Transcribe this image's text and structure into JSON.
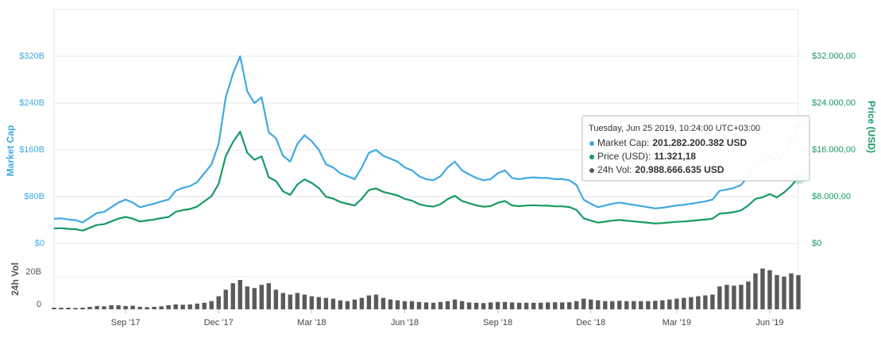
{
  "chart_data": [
    {
      "type": "line",
      "y_label": "Market Cap",
      "y2_label": "Price (USD)",
      "grid": true,
      "ylim": [
        0,
        400000000000
      ],
      "yticks": [
        {
          "value": 0,
          "label": "$0"
        },
        {
          "value": 80000000000,
          "label": "$80B"
        },
        {
          "value": 160000000000,
          "label": "$160B"
        },
        {
          "value": 240000000000,
          "label": "$240B"
        },
        {
          "value": 320000000000,
          "label": "$320B"
        }
      ],
      "y2lim": [
        0,
        40000
      ],
      "y2ticks": [
        {
          "value": 0,
          "label": "$0"
        },
        {
          "value": 8000,
          "label": "$8.000,00"
        },
        {
          "value": 16000,
          "label": "$16.000,00"
        },
        {
          "value": 24000,
          "label": "$24.000,00"
        },
        {
          "value": 32000,
          "label": "$32.000,00"
        }
      ],
      "series": [
        {
          "color": "#3fa9e2",
          "values": [
            42000000000.0,
            43000000000.0,
            41000000000.0,
            40000000000.0,
            36000000000.0,
            44000000000.0,
            52000000000.0,
            54000000000.0,
            62000000000.0,
            70000000000.0,
            75000000000.0,
            70000000000.0,
            62000000000.0,
            65000000000.0,
            68000000000.0,
            72000000000.0,
            75000000000.0,
            90000000000.0,
            95000000000.0,
            98000000000.0,
            105000000000.0,
            120000000000.0,
            135000000000.0,
            170000000000.0,
            250000000000.0,
            290000000000.0,
            320000000000.0,
            260000000000.0,
            240000000000.0,
            250000000000.0,
            190000000000.0,
            180000000000.0,
            150000000000.0,
            140000000000.0,
            170000000000.0,
            185000000000.0,
            175000000000.0,
            160000000000.0,
            135000000000.0,
            130000000000.0,
            120000000000.0,
            115000000000.0,
            110000000000.0,
            130000000000.0,
            155000000000.0,
            160000000000.0,
            150000000000.0,
            145000000000.0,
            140000000000.0,
            130000000000.0,
            125000000000.0,
            115000000000.0,
            110000000000.0,
            108000000000.0,
            115000000000.0,
            130000000000.0,
            140000000000.0,
            125000000000.0,
            118000000000.0,
            112000000000.0,
            108000000000.0,
            110000000000.0,
            120000000000.0,
            125000000000.0,
            112000000000.0,
            110000000000.0,
            112000000000.0,
            113000000000.0,
            112000000000.0,
            112000000000.0,
            110000000000.0,
            110000000000.0,
            108000000000.0,
            100000000000.0,
            75000000000.0,
            68000000000.0,
            62000000000.0,
            65000000000.0,
            68000000000.0,
            70000000000.0,
            68000000000.0,
            66000000000.0,
            64000000000.0,
            62000000000.0,
            60000000000.0,
            61000000000.0,
            63000000000.0,
            65000000000.0,
            66000000000.0,
            68000000000.0,
            70000000000.0,
            72000000000.0,
            75000000000.0,
            90000000000.0,
            92000000000.0,
            95000000000.0,
            100000000000.0,
            115000000000.0,
            135000000000.0,
            140000000000.0,
            150000000000.0,
            140000000000.0,
            155000000000.0,
            175000000000.0,
            201282200382
          ]
        },
        {
          "color": "#169b62",
          "axis": "y2",
          "values": [
            2560,
            2620,
            2500,
            2440,
            2190,
            2680,
            3160,
            3290,
            3770,
            4240,
            4540,
            4230,
            3750,
            3930,
            4100,
            4340,
            4520,
            5410,
            5710,
            5890,
            6300,
            7200,
            8080,
            10170,
            14950,
            17320,
            19100,
            15510,
            14300,
            14890,
            11310,
            10700,
            8910,
            8310,
            10080,
            10970,
            10360,
            9470,
            7980,
            7680,
            7080,
            6780,
            6480,
            7660,
            9120,
            9410,
            8810,
            8510,
            8210,
            7620,
            7320,
            6730,
            6430,
            6310,
            6710,
            7580,
            8160,
            7280,
            6870,
            6510,
            6280,
            6390,
            6960,
            7250,
            6490,
            6370,
            6480,
            6530,
            6470,
            6460,
            6340,
            6340,
            6220,
            5750,
            4310,
            3910,
            3560,
            3730,
            3900,
            4010,
            3890,
            3770,
            3660,
            3540,
            3420,
            3480,
            3590,
            3700,
            3750,
            3860,
            3980,
            4080,
            4250,
            5100,
            5210,
            5370,
            5650,
            6490,
            7620,
            7890,
            8450,
            7880,
            8720,
            9840,
            11321.18
          ]
        }
      ],
      "tooltip": {
        "title": "Tuesday, Jun 25 2019, 10:24:00 UTC+03:00",
        "rows": [
          {
            "label": "Market Cap:",
            "value": "201.282.200.382 USD"
          },
          {
            "label": "Price (USD):",
            "value": "11.321,18"
          },
          {
            "label": "24h Vol:",
            "value": "20.988.666.635 USD"
          }
        ]
      }
    },
    {
      "type": "bar",
      "y_label": "24h Vol",
      "categories": [
        null,
        null,
        null,
        null,
        null,
        null,
        null,
        null,
        null,
        null,
        "Sep '17",
        null,
        null,
        null,
        null,
        null,
        null,
        null,
        null,
        null,
        null,
        null,
        null,
        "Dec '17",
        null,
        null,
        null,
        null,
        null,
        null,
        null,
        null,
        null,
        null,
        null,
        null,
        "Mar '18",
        null,
        null,
        null,
        null,
        null,
        null,
        null,
        null,
        null,
        null,
        null,
        null,
        "Jun '18",
        null,
        null,
        null,
        null,
        null,
        null,
        null,
        null,
        null,
        null,
        null,
        null,
        "Sep '18",
        null,
        null,
        null,
        null,
        null,
        null,
        null,
        null,
        null,
        null,
        null,
        null,
        "Dec '18",
        null,
        null,
        null,
        null,
        null,
        null,
        null,
        null,
        null,
        null,
        null,
        "Mar '19",
        null,
        null,
        null,
        null,
        null,
        null,
        null,
        null,
        null,
        null,
        null,
        null,
        "Jun '19",
        null,
        null,
        null,
        null
      ],
      "ylim": [
        0,
        36000000000
      ],
      "yticks": [
        0,
        {
          "value": 20000000000,
          "label": "20B"
        }
      ],
      "series": [
        {
          "color": "#5a5a5a",
          "values": [
            1000000000.0,
            1000000000.0,
            1000000000.0,
            800000000.0,
            1000000000.0,
            1500000000.0,
            2000000000.0,
            1800000000.0,
            2500000000.0,
            2500000000.0,
            2000000000.0,
            2200000000.0,
            1500000000.0,
            1300000000.0,
            1500000000.0,
            1800000000.0,
            2500000000.0,
            3000000000.0,
            2800000000.0,
            3000000000.0,
            3500000000.0,
            4000000000.0,
            5000000000.0,
            8000000000.0,
            12000000000.0,
            16000000000.0,
            18000000000.0,
            14000000000.0,
            13000000000.0,
            15000000000.0,
            16000000000.0,
            12000000000.0,
            10000000000.0,
            9000000000.0,
            10000000000.0,
            9000000000.0,
            8000000000.0,
            7500000000.0,
            7000000000.0,
            6500000000.0,
            5500000000.0,
            5000000000.0,
            6000000000.0,
            7000000000.0,
            8500000000.0,
            9000000000.0,
            7000000000.0,
            6000000000.0,
            5500000000.0,
            5000000000.0,
            5000000000.0,
            4500000000.0,
            4200000000.0,
            4000000000.0,
            4500000000.0,
            5000000000.0,
            6000000000.0,
            5000000000.0,
            4200000000.0,
            4000000000.0,
            3800000000.0,
            4200000000.0,
            4500000000.0,
            4500000000.0,
            4200000000.0,
            4000000000.0,
            4000000000.0,
            4000000000.0,
            4000000000.0,
            4200000000.0,
            4300000000.0,
            4200000000.0,
            4300000000.0,
            5000000000.0,
            6500000000.0,
            6000000000.0,
            5500000000.0,
            5000000000.0,
            5000000000.0,
            5200000000.0,
            5000000000.0,
            5000000000.0,
            5000000000.0,
            5000000000.0,
            5200000000.0,
            5500000000.0,
            6000000000.0,
            6500000000.0,
            7000000000.0,
            7500000000.0,
            8000000000.0,
            8500000000.0,
            9000000000.0,
            14000000000.0,
            15000000000.0,
            14500000000.0,
            15000000000.0,
            17000000000.0,
            22000000000.0,
            25000000000.0,
            24000000000.0,
            21000000000.0,
            20000000000.0,
            22000000000.0,
            20988666635
          ]
        }
      ]
    }
  ]
}
